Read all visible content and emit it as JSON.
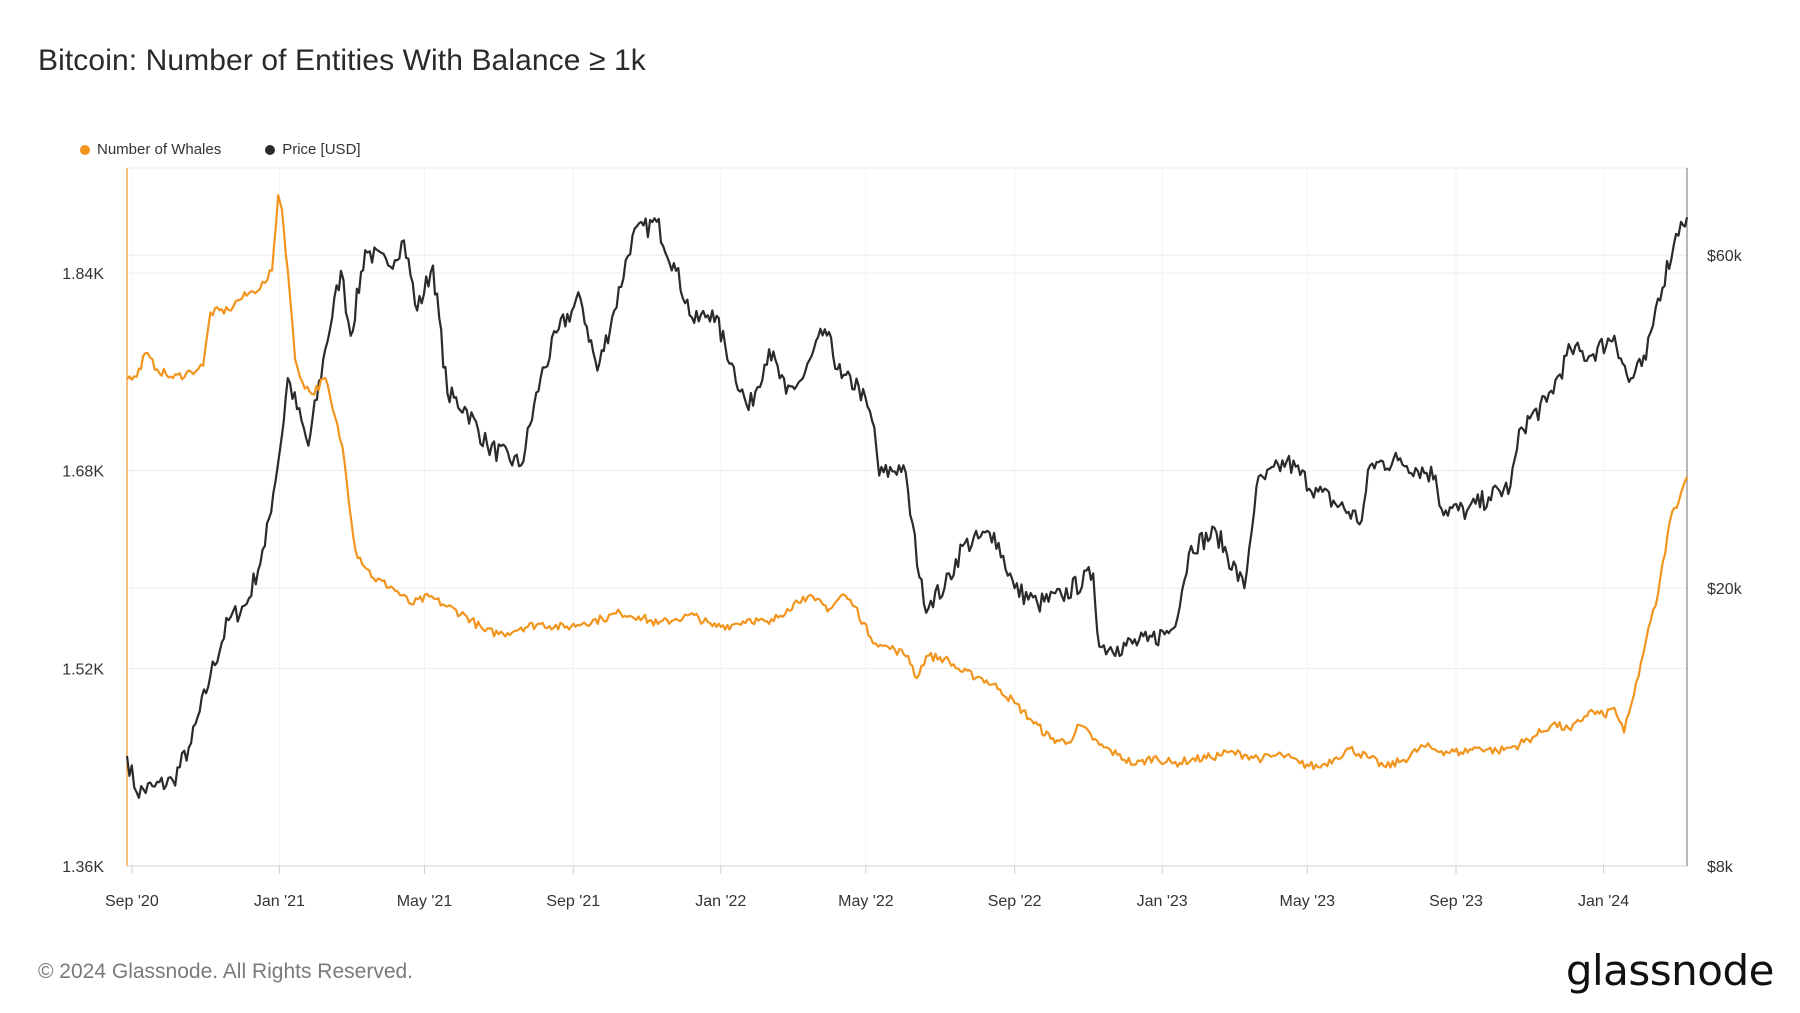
{
  "title": "Bitcoin: Number of Entities With Balance ≥ 1k",
  "footer": "© 2024 Glassnode. All Rights Reserved.",
  "logo": "glassnode",
  "colors": {
    "whales": "#f2951f",
    "price": "#2b2b2b",
    "grid": "#ececec",
    "axis": "#cfcfcf"
  },
  "chart_data": {
    "type": "line",
    "title": "Bitcoin: Number of Entities With Balance ≥ 1k",
    "x_ticks": [
      "Sep '20",
      "Jan '21",
      "May '21",
      "Sep '21",
      "Jan '22",
      "May '22",
      "Sep '22",
      "Jan '23",
      "May '23",
      "Sep '23",
      "Jan '24"
    ],
    "y_left": {
      "ticks": [
        "1.36K",
        "1.52K",
        "1.68K",
        "1.84K"
      ],
      "tick_values": [
        1360,
        1520,
        1680,
        1840
      ],
      "range": [
        1360,
        1925
      ]
    },
    "y_right": {
      "scale": "log",
      "ticks": [
        "$8k",
        "$20k",
        "$60k"
      ],
      "tick_values": [
        8000,
        20000,
        60000
      ],
      "range": [
        8000,
        80000
      ]
    },
    "grid": true,
    "legend_position": "top-left",
    "series": [
      {
        "name": "Number of Whales",
        "axis": "left",
        "points": [
          [
            "2020-08-28",
            1754
          ],
          [
            "2020-09-05",
            1756
          ],
          [
            "2020-09-12",
            1775
          ],
          [
            "2020-09-22",
            1762
          ],
          [
            "2020-10-05",
            1755
          ],
          [
            "2020-10-20",
            1760
          ],
          [
            "2020-10-30",
            1765
          ],
          [
            "2020-11-05",
            1808
          ],
          [
            "2020-11-20",
            1810
          ],
          [
            "2020-11-28",
            1818
          ],
          [
            "2020-12-10",
            1825
          ],
          [
            "2020-12-20",
            1832
          ],
          [
            "2020-12-26",
            1842
          ],
          [
            "2020-12-31",
            1903
          ],
          [
            "2021-01-03",
            1892
          ],
          [
            "2021-01-08",
            1842
          ],
          [
            "2021-01-14",
            1770
          ],
          [
            "2021-01-20",
            1752
          ],
          [
            "2021-01-28",
            1742
          ],
          [
            "2021-02-08",
            1755
          ],
          [
            "2021-02-14",
            1730
          ],
          [
            "2021-02-22",
            1700
          ],
          [
            "2021-03-05",
            1615
          ],
          [
            "2021-03-20",
            1593
          ],
          [
            "2021-04-05",
            1585
          ],
          [
            "2021-04-20",
            1572
          ],
          [
            "2021-05-05",
            1578
          ],
          [
            "2021-05-20",
            1570
          ],
          [
            "2021-06-05",
            1562
          ],
          [
            "2021-06-20",
            1550
          ],
          [
            "2021-07-05",
            1548
          ],
          [
            "2021-07-20",
            1553
          ],
          [
            "2021-08-05",
            1556
          ],
          [
            "2021-08-25",
            1553
          ],
          [
            "2021-09-10",
            1557
          ],
          [
            "2021-09-25",
            1560
          ],
          [
            "2021-10-10",
            1565
          ],
          [
            "2021-10-25",
            1562
          ],
          [
            "2021-11-10",
            1556
          ],
          [
            "2021-11-25",
            1560
          ],
          [
            "2021-12-10",
            1563
          ],
          [
            "2021-12-25",
            1554
          ],
          [
            "2022-01-10",
            1555
          ],
          [
            "2022-01-25",
            1560
          ],
          [
            "2022-02-10",
            1556
          ],
          [
            "2022-02-25",
            1568
          ],
          [
            "2022-03-10",
            1578
          ],
          [
            "2022-03-20",
            1575
          ],
          [
            "2022-04-01",
            1568
          ],
          [
            "2022-04-12",
            1580
          ],
          [
            "2022-04-22",
            1570
          ],
          [
            "2022-05-05",
            1545
          ],
          [
            "2022-05-15",
            1538
          ],
          [
            "2022-05-25",
            1535
          ],
          [
            "2022-06-05",
            1530
          ],
          [
            "2022-06-12",
            1512
          ],
          [
            "2022-06-20",
            1530
          ],
          [
            "2022-07-05",
            1528
          ],
          [
            "2022-07-20",
            1517
          ],
          [
            "2022-08-05",
            1512
          ],
          [
            "2022-08-20",
            1503
          ],
          [
            "2022-09-01",
            1492
          ],
          [
            "2022-09-15",
            1478
          ],
          [
            "2022-10-01",
            1463
          ],
          [
            "2022-10-15",
            1460
          ],
          [
            "2022-10-25",
            1474
          ],
          [
            "2022-11-10",
            1458
          ],
          [
            "2022-11-25",
            1450
          ],
          [
            "2022-12-10",
            1442
          ],
          [
            "2022-12-25",
            1448
          ],
          [
            "2023-01-10",
            1443
          ],
          [
            "2023-01-25",
            1446
          ],
          [
            "2023-02-10",
            1448
          ],
          [
            "2023-02-25",
            1452
          ],
          [
            "2023-03-10",
            1450
          ],
          [
            "2023-03-25",
            1447
          ],
          [
            "2023-04-10",
            1450
          ],
          [
            "2023-04-25",
            1443
          ],
          [
            "2023-05-10",
            1440
          ],
          [
            "2023-05-25",
            1448
          ],
          [
            "2023-06-05",
            1455
          ],
          [
            "2023-06-20",
            1448
          ],
          [
            "2023-07-05",
            1440
          ],
          [
            "2023-07-20",
            1446
          ],
          [
            "2023-08-05",
            1457
          ],
          [
            "2023-08-20",
            1453
          ],
          [
            "2023-09-05",
            1452
          ],
          [
            "2023-09-20",
            1456
          ],
          [
            "2023-10-05",
            1453
          ],
          [
            "2023-10-20",
            1457
          ],
          [
            "2023-11-05",
            1465
          ],
          [
            "2023-11-20",
            1475
          ],
          [
            "2023-12-05",
            1470
          ],
          [
            "2023-12-20",
            1485
          ],
          [
            "2024-01-01",
            1482
          ],
          [
            "2024-01-10",
            1488
          ],
          [
            "2024-01-18",
            1468
          ],
          [
            "2024-01-26",
            1498
          ],
          [
            "2024-02-05",
            1542
          ],
          [
            "2024-02-15",
            1580
          ],
          [
            "2024-02-25",
            1640
          ],
          [
            "2024-03-05",
            1662
          ],
          [
            "2024-03-10",
            1675
          ]
        ]
      },
      {
        "name": "Price [USD]",
        "axis": "right",
        "points": [
          [
            "2020-08-28",
            11500
          ],
          [
            "2020-09-05",
            10200
          ],
          [
            "2020-09-20",
            10400
          ],
          [
            "2020-10-05",
            10600
          ],
          [
            "2020-10-20",
            12000
          ],
          [
            "2020-11-05",
            15000
          ],
          [
            "2020-11-20",
            18000
          ],
          [
            "2020-12-05",
            19000
          ],
          [
            "2020-12-20",
            23000
          ],
          [
            "2021-01-03",
            33000
          ],
          [
            "2021-01-08",
            40000
          ],
          [
            "2021-01-25",
            32000
          ],
          [
            "2021-02-08",
            44000
          ],
          [
            "2021-02-21",
            57000
          ],
          [
            "2021-03-01",
            46000
          ],
          [
            "2021-03-13",
            61000
          ],
          [
            "2021-04-01",
            58000
          ],
          [
            "2021-04-14",
            63000
          ],
          [
            "2021-04-25",
            50000
          ],
          [
            "2021-05-08",
            58000
          ],
          [
            "2021-05-20",
            38000
          ],
          [
            "2021-06-05",
            36000
          ],
          [
            "2021-06-22",
            32000
          ],
          [
            "2021-07-20",
            30000
          ],
          [
            "2021-08-05",
            40000
          ],
          [
            "2021-08-20",
            47000
          ],
          [
            "2021-09-07",
            52000
          ],
          [
            "2021-09-21",
            41000
          ],
          [
            "2021-10-05",
            50000
          ],
          [
            "2021-10-20",
            64000
          ],
          [
            "2021-11-09",
            67000
          ],
          [
            "2021-11-25",
            57000
          ],
          [
            "2021-12-10",
            48000
          ],
          [
            "2021-12-25",
            50000
          ],
          [
            "2022-01-10",
            42000
          ],
          [
            "2022-01-24",
            36000
          ],
          [
            "2022-02-10",
            44000
          ],
          [
            "2022-02-24",
            38000
          ],
          [
            "2022-03-10",
            40000
          ],
          [
            "2022-03-28",
            47000
          ],
          [
            "2022-04-11",
            40000
          ],
          [
            "2022-04-25",
            39000
          ],
          [
            "2022-05-08",
            34000
          ],
          [
            "2022-05-12",
            29000
          ],
          [
            "2022-06-01",
            30000
          ],
          [
            "2022-06-18",
            19000
          ],
          [
            "2022-07-05",
            20000
          ],
          [
            "2022-07-20",
            23000
          ],
          [
            "2022-08-15",
            24000
          ],
          [
            "2022-09-01",
            20000
          ],
          [
            "2022-09-20",
            19000
          ],
          [
            "2022-10-10",
            19500
          ],
          [
            "2022-11-05",
            21000
          ],
          [
            "2022-11-10",
            16500
          ],
          [
            "2022-11-25",
            16500
          ],
          [
            "2022-12-20",
            16800
          ],
          [
            "2023-01-10",
            17500
          ],
          [
            "2023-01-25",
            23000
          ],
          [
            "2023-02-15",
            24000
          ],
          [
            "2023-03-10",
            20000
          ],
          [
            "2023-03-20",
            28000
          ],
          [
            "2023-04-14",
            30400
          ],
          [
            "2023-05-10",
            27500
          ],
          [
            "2023-06-15",
            25000
          ],
          [
            "2023-06-22",
            30000
          ],
          [
            "2023-07-15",
            30500
          ],
          [
            "2023-08-15",
            29000
          ],
          [
            "2023-08-20",
            26000
          ],
          [
            "2023-09-10",
            25800
          ],
          [
            "2023-09-28",
            27000
          ],
          [
            "2023-10-16",
            28000
          ],
          [
            "2023-10-25",
            34000
          ],
          [
            "2023-11-15",
            37000
          ],
          [
            "2023-12-05",
            44000
          ],
          [
            "2023-12-20",
            43000
          ],
          [
            "2024-01-10",
            46000
          ],
          [
            "2024-01-22",
            39500
          ],
          [
            "2024-02-05",
            42500
          ],
          [
            "2024-02-15",
            52000
          ],
          [
            "2024-02-28",
            62000
          ],
          [
            "2024-03-05",
            67000
          ],
          [
            "2024-03-10",
            68000
          ]
        ]
      }
    ]
  }
}
